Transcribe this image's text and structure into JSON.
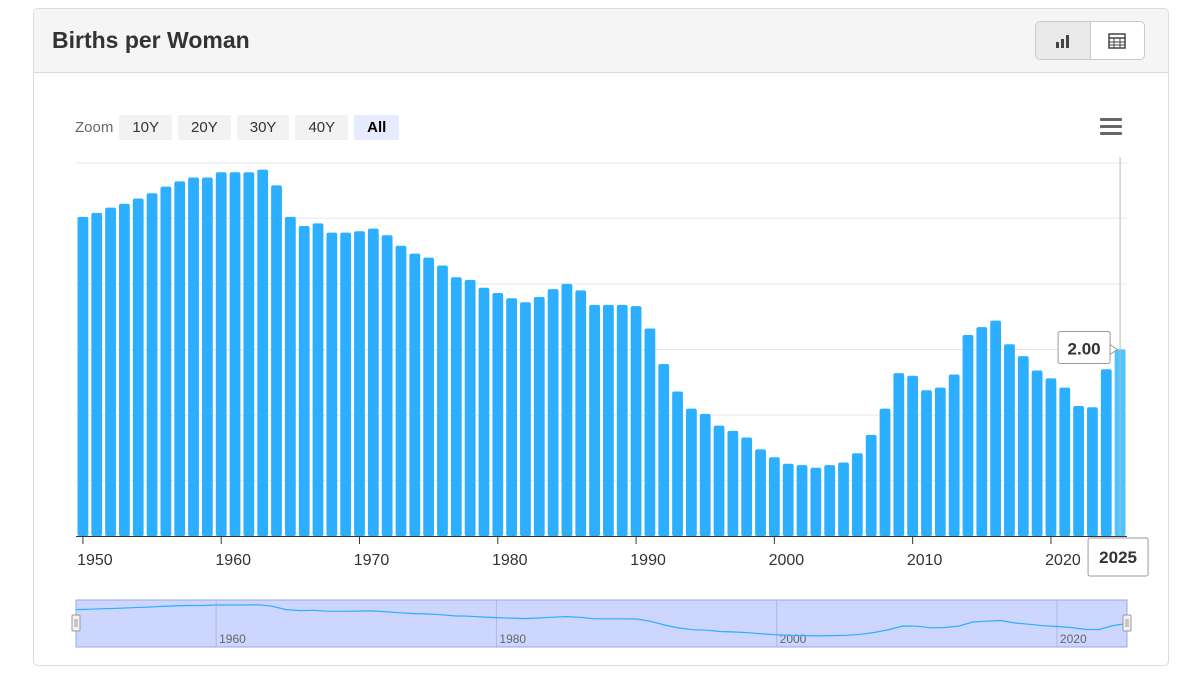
{
  "header": {
    "title": "Births per Woman"
  },
  "view_toggle": {
    "chart_icon": "bar-chart-icon",
    "table_icon": "table-icon"
  },
  "zoom": {
    "label": "Zoom",
    "buttons": [
      "10Y",
      "20Y",
      "30Y",
      "40Y",
      "All"
    ],
    "active": "All"
  },
  "menu": {
    "icon": "hamburger-menu-icon"
  },
  "colors": {
    "bar": "#2caffe",
    "bar_highlight": "#4cc4ff",
    "navigator_fill": "#ccd6ff",
    "navigator_line": "#2caffe",
    "grid": "#e6e6e6"
  },
  "chart_data": {
    "type": "bar",
    "x": [
      1950,
      1951,
      1952,
      1953,
      1954,
      1955,
      1956,
      1957,
      1958,
      1959,
      1960,
      1961,
      1962,
      1963,
      1964,
      1965,
      1966,
      1967,
      1968,
      1969,
      1970,
      1971,
      1972,
      1973,
      1974,
      1975,
      1976,
      1977,
      1978,
      1979,
      1980,
      1981,
      1982,
      1983,
      1984,
      1985,
      1986,
      1987,
      1988,
      1989,
      1990,
      1991,
      1992,
      1993,
      1994,
      1995,
      1996,
      1997,
      1998,
      1999,
      2000,
      2001,
      2002,
      2003,
      2004,
      2005,
      2006,
      2007,
      2008,
      2009,
      2010,
      2011,
      2012,
      2013,
      2014,
      2015,
      2016,
      2017,
      2018,
      2019,
      2020,
      2021,
      2022,
      2023,
      2024,
      2025
    ],
    "values": [
      3.01,
      3.04,
      3.08,
      3.11,
      3.15,
      3.19,
      3.24,
      3.28,
      3.31,
      3.31,
      3.35,
      3.35,
      3.35,
      3.37,
      3.25,
      3.01,
      2.94,
      2.96,
      2.89,
      2.89,
      2.9,
      2.92,
      2.87,
      2.79,
      2.73,
      2.7,
      2.64,
      2.55,
      2.53,
      2.47,
      2.43,
      2.39,
      2.36,
      2.4,
      2.46,
      2.5,
      2.45,
      2.34,
      2.34,
      2.34,
      2.33,
      2.16,
      1.89,
      1.68,
      1.55,
      1.51,
      1.42,
      1.38,
      1.33,
      1.24,
      1.18,
      1.13,
      1.12,
      1.1,
      1.12,
      1.14,
      1.21,
      1.35,
      1.55,
      1.82,
      1.8,
      1.69,
      1.71,
      1.81,
      2.11,
      2.17,
      2.22,
      2.04,
      1.95,
      1.84,
      1.78,
      1.71,
      1.57,
      1.56,
      1.85,
      2.0
    ],
    "xlabel": "",
    "ylabel": "",
    "x_ticks": [
      1950,
      1960,
      1970,
      1980,
      1990,
      2000,
      2010,
      2020
    ],
    "ylim": [
      0.58,
      3.42
    ],
    "y_gridlines": [
      0.58,
      1.0,
      1.5,
      2.0,
      2.5,
      3.0,
      3.42
    ],
    "grid": true,
    "tooltip": {
      "value_label": "2.00",
      "x_label": "2025"
    },
    "navigator": {
      "ticks": [
        1960,
        1980,
        2000,
        2020
      ]
    }
  }
}
